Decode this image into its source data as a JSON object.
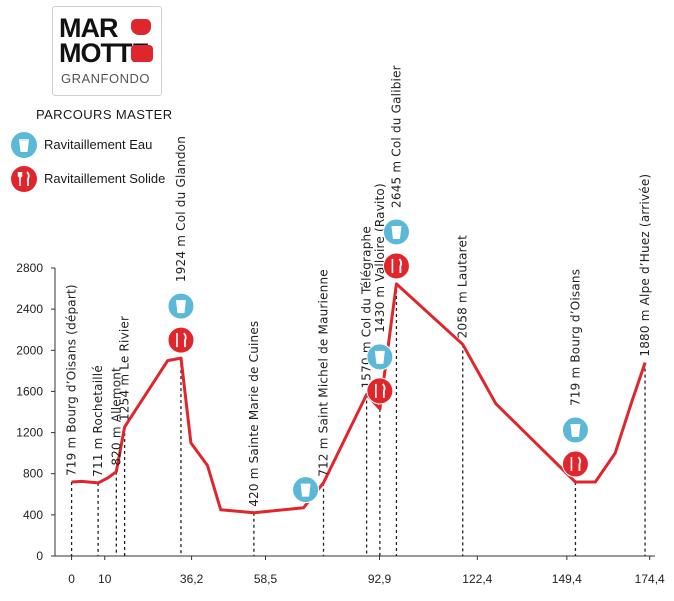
{
  "logo": {
    "line1": "MAR",
    "line2": "MOTTE",
    "line3": "GRANFONDO"
  },
  "route_title": "PARCOURS MASTER",
  "legend": [
    {
      "label": "Ravitaillement Eau",
      "icon": "water-cup-icon",
      "color": "#5bb8d8"
    },
    {
      "label": "Ravitaillement Solide",
      "icon": "fork-knife-icon",
      "color": "#e0262d"
    }
  ],
  "chart_data": {
    "type": "area",
    "ylim": [
      0,
      2800
    ],
    "y_ticks": [
      0,
      400,
      800,
      1200,
      1600,
      2000,
      2400,
      2800
    ],
    "xlim": [
      -5,
      176
    ],
    "x_ticks": [
      {
        "value": 0,
        "label": "0"
      },
      {
        "value": 10,
        "label": "10"
      },
      {
        "value": 36.2,
        "label": "36,2"
      },
      {
        "value": 58.5,
        "label": "58,5"
      },
      {
        "value": 92.9,
        "label": "92,9"
      },
      {
        "value": 122.4,
        "label": "122,4"
      },
      {
        "value": 149.4,
        "label": "149,4"
      },
      {
        "value": 174.4,
        "label": "174,4"
      }
    ],
    "line_color": "#e0262d",
    "profile": [
      {
        "x": 0,
        "y": 719
      },
      {
        "x": 3,
        "y": 725
      },
      {
        "x": 8,
        "y": 711
      },
      {
        "x": 11,
        "y": 760
      },
      {
        "x": 13.5,
        "y": 820
      },
      {
        "x": 16,
        "y": 1254
      },
      {
        "x": 29,
        "y": 1900
      },
      {
        "x": 33,
        "y": 1924
      },
      {
        "x": 36,
        "y": 1100
      },
      {
        "x": 41,
        "y": 880
      },
      {
        "x": 45,
        "y": 450
      },
      {
        "x": 55,
        "y": 420
      },
      {
        "x": 70,
        "y": 470
      },
      {
        "x": 76,
        "y": 712
      },
      {
        "x": 89,
        "y": 1570
      },
      {
        "x": 93,
        "y": 1430
      },
      {
        "x": 98,
        "y": 2645
      },
      {
        "x": 118,
        "y": 2058
      },
      {
        "x": 128,
        "y": 1480
      },
      {
        "x": 152,
        "y": 719
      },
      {
        "x": 158,
        "y": 719
      },
      {
        "x": 164,
        "y": 1000
      },
      {
        "x": 169,
        "y": 1500
      },
      {
        "x": 173,
        "y": 1880
      }
    ],
    "passes": [
      {
        "x": 0,
        "y": 719,
        "label": "719 m Bourg d’Oisans (départ)"
      },
      {
        "x": 8,
        "y": 711,
        "label": "711 m Rochetaillé"
      },
      {
        "x": 13.5,
        "y": 820,
        "label": "820 m Allemont"
      },
      {
        "x": 16,
        "y": 1254,
        "label": "1254 m Le Rivier"
      },
      {
        "x": 33,
        "y": 1924,
        "label": "1924 m Col du Glandon"
      },
      {
        "x": 55,
        "y": 420,
        "label": "420 m Sainte Marie de Cuines"
      },
      {
        "x": 76,
        "y": 712,
        "label": "712 m Saint Michel de Maurienne"
      },
      {
        "x": 89,
        "y": 1570,
        "label": "1570 m Col du Télégraphe"
      },
      {
        "x": 93,
        "y": 1430,
        "label": "1430 m Valloire (Ravito)"
      },
      {
        "x": 98,
        "y": 2645,
        "label": "2645 m Col du Galibier"
      },
      {
        "x": 118,
        "y": 2058,
        "label": "2058 m Lautaret"
      },
      {
        "x": 152,
        "y": 719,
        "label": "719 m Bourg d’Oisans"
      },
      {
        "x": 173,
        "y": 1880,
        "label": "1880 m Alpe d’Huez (arrivée)"
      }
    ],
    "ravitos": [
      {
        "x": 33,
        "type": "eau"
      },
      {
        "x": 33,
        "type": "solide"
      },
      {
        "x": 73,
        "type": "eau"
      },
      {
        "x": 93,
        "type": "eau"
      },
      {
        "x": 93,
        "type": "solide"
      },
      {
        "x": 98,
        "type": "eau"
      },
      {
        "x": 98,
        "type": "solide"
      },
      {
        "x": 152,
        "type": "eau"
      },
      {
        "x": 152,
        "type": "solide"
      }
    ]
  }
}
